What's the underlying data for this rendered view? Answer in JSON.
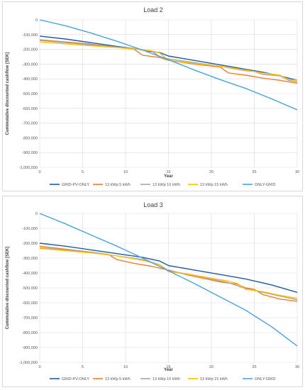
{
  "chart_data": [
    {
      "type": "line",
      "title": "Load 2",
      "xlabel": "Year",
      "ylabel": "Cummulative discounted cashflow [SEK]",
      "xlim": [
        0,
        30
      ],
      "ylim": [
        -1000000,
        0
      ],
      "xticks": [
        0,
        5,
        10,
        15,
        20,
        25,
        30
      ],
      "yticks": [
        0,
        -100000,
        -200000,
        -300000,
        -400000,
        -500000,
        -600000,
        -700000,
        -800000,
        -900000,
        -1000000
      ],
      "ytick_labels": [
        "0",
        "-100,000",
        "-200,000",
        "-300,000",
        "-400,000",
        "-500,000",
        "-600,000",
        "-700,000",
        "-800,000",
        "-900,000",
        "-1,000,000"
      ],
      "grid": true,
      "legend": "bottom",
      "series": [
        {
          "name": "GRID-PV-ONLY",
          "color": "#1f5aa6",
          "x": [
            0,
            3,
            6,
            9,
            11,
            13,
            14,
            15,
            18,
            21,
            24,
            26,
            28,
            30
          ],
          "y": [
            -110000,
            -130000,
            -155000,
            -180000,
            -195000,
            -215000,
            -222000,
            -245000,
            -275000,
            -305000,
            -335000,
            -355000,
            -380000,
            -410000
          ]
        },
        {
          "name": "13 kWp 5 kWh",
          "color": "#ed7d31",
          "x": [
            0,
            3,
            6,
            9,
            11,
            12,
            13,
            14,
            15,
            18,
            21,
            22,
            24,
            26,
            28,
            30
          ],
          "y": [
            -135000,
            -150000,
            -165000,
            -185000,
            -200000,
            -240000,
            -248000,
            -255000,
            -275000,
            -300000,
            -320000,
            -360000,
            -375000,
            -395000,
            -410000,
            -430000
          ]
        },
        {
          "name": "13 kWp 10 kWh",
          "color": "#a5a5a5",
          "x": [
            0,
            3,
            6,
            9,
            11,
            13,
            14,
            15,
            18,
            21,
            24,
            25,
            26,
            28,
            29,
            30
          ],
          "y": [
            -140000,
            -155000,
            -170000,
            -185000,
            -195000,
            -210000,
            -250000,
            -265000,
            -290000,
            -315000,
            -345000,
            -350000,
            -370000,
            -380000,
            -410000,
            -420000
          ]
        },
        {
          "name": "13 kWp 15 kWh",
          "color": "#ffc000",
          "x": [
            0,
            3,
            6,
            9,
            11,
            13,
            14,
            15,
            18,
            21,
            24,
            26,
            28,
            29,
            30
          ],
          "y": [
            -150000,
            -163000,
            -176000,
            -188000,
            -198000,
            -210000,
            -225000,
            -275000,
            -295000,
            -315000,
            -340000,
            -360000,
            -375000,
            -405000,
            -410000
          ]
        },
        {
          "name": "ONLY-GRID",
          "color": "#4aa3df",
          "x": [
            0,
            3,
            6,
            9,
            12,
            15,
            18,
            21,
            24,
            27,
            30
          ],
          "y": [
            0,
            -40000,
            -90000,
            -145000,
            -205000,
            -270000,
            -340000,
            -405000,
            -465000,
            -535000,
            -610000
          ]
        }
      ]
    },
    {
      "type": "line",
      "title": "Load 3",
      "xlabel": "Year",
      "ylabel": "Cummulative discounted cashflow [SEK]",
      "xlim": [
        0,
        30
      ],
      "ylim": [
        -1000000,
        0
      ],
      "xticks": [
        0,
        5,
        10,
        15,
        20,
        25,
        30
      ],
      "yticks": [
        0,
        -100000,
        -200000,
        -300000,
        -400000,
        -500000,
        -600000,
        -700000,
        -800000,
        -900000,
        -1000000
      ],
      "ytick_labels": [
        "0",
        "-100,000",
        "-200,000",
        "-300,000",
        "-400,000",
        "-500,000",
        "-600,000",
        "-700,000",
        "-800,000",
        "-900,000",
        "-1,000,000"
      ],
      "grid": true,
      "legend": "bottom",
      "series": [
        {
          "name": "GRID-PV-ONLY",
          "color": "#1f5aa6",
          "x": [
            0,
            3,
            6,
            9,
            12,
            14,
            15,
            18,
            21,
            24,
            27,
            30
          ],
          "y": [
            -200000,
            -220000,
            -245000,
            -270000,
            -295000,
            -320000,
            -350000,
            -380000,
            -410000,
            -440000,
            -480000,
            -530000
          ]
        },
        {
          "name": "13 kWp 5 kWh",
          "color": "#ed7d31",
          "x": [
            0,
            3,
            6,
            8,
            9,
            11,
            13,
            15,
            17,
            19,
            21,
            23,
            24,
            25,
            26,
            28,
            30
          ],
          "y": [
            -220000,
            -240000,
            -260000,
            -275000,
            -310000,
            -335000,
            -355000,
            -380000,
            -410000,
            -435000,
            -460000,
            -475000,
            -500000,
            -510000,
            -545000,
            -575000,
            -590000
          ]
        },
        {
          "name": "13 kWp 10 kWh",
          "color": "#a5a5a5",
          "x": [
            0,
            3,
            6,
            9,
            12,
            14,
            15,
            18,
            20,
            22,
            24,
            26,
            28,
            30
          ],
          "y": [
            -230000,
            -245000,
            -262000,
            -285000,
            -310000,
            -345000,
            -385000,
            -415000,
            -440000,
            -465000,
            -505000,
            -530000,
            -555000,
            -580000
          ]
        },
        {
          "name": "13 kWp 15 kWh",
          "color": "#ffc000",
          "x": [
            0,
            3,
            6,
            9,
            12,
            14,
            15,
            18,
            20,
            22,
            23,
            24,
            26,
            28,
            30
          ],
          "y": [
            -235000,
            -250000,
            -265000,
            -285000,
            -315000,
            -345000,
            -390000,
            -415000,
            -435000,
            -455000,
            -470000,
            -510000,
            -525000,
            -550000,
            -570000
          ]
        },
        {
          "name": "ONLY-GRID",
          "color": "#4aa3df",
          "x": [
            0,
            3,
            6,
            9,
            12,
            15,
            18,
            21,
            24,
            27,
            30
          ],
          "y": [
            0,
            -70000,
            -145000,
            -220000,
            -300000,
            -385000,
            -470000,
            -560000,
            -650000,
            -760000,
            -890000
          ]
        }
      ]
    }
  ]
}
